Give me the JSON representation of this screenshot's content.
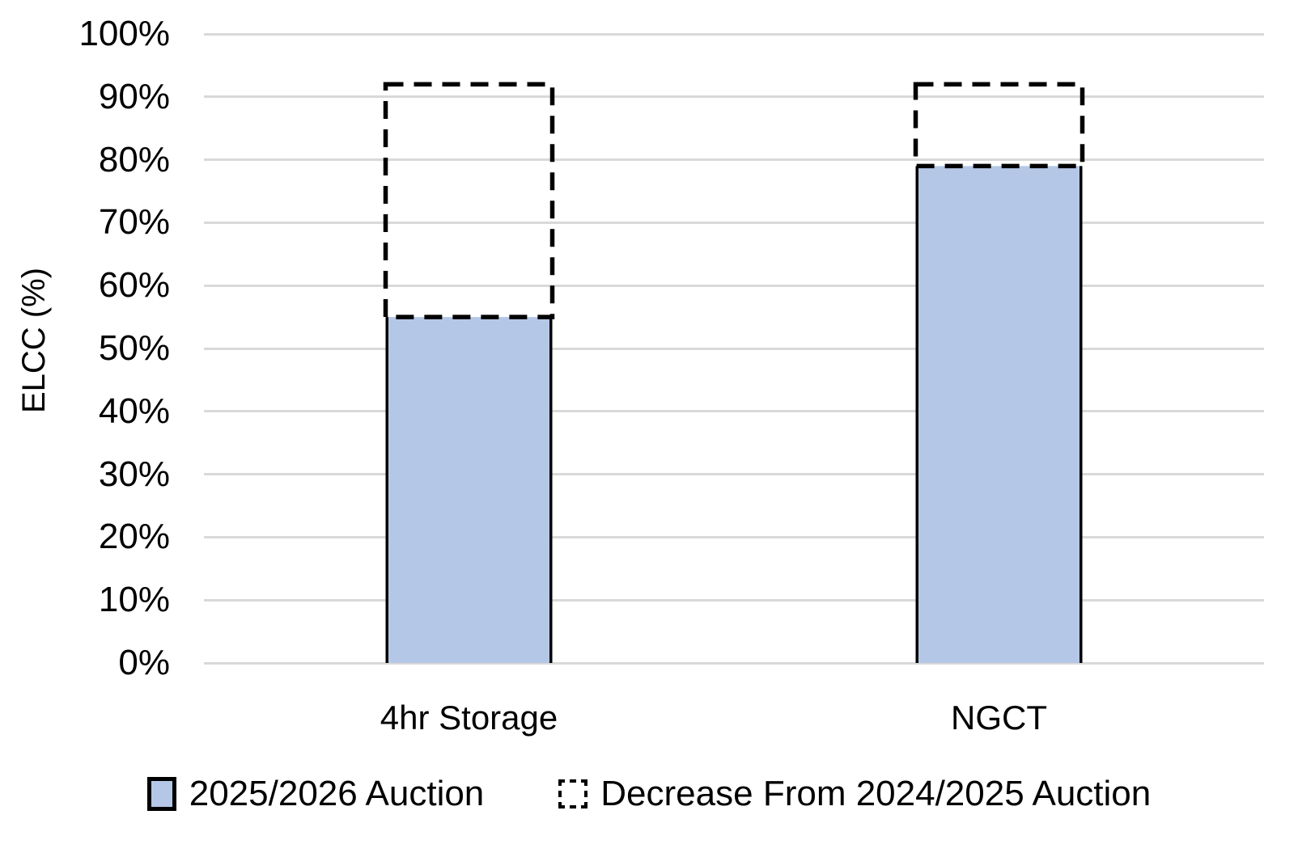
{
  "chart_data": {
    "type": "bar",
    "subtype": "stacked",
    "title": "",
    "ylabel": "ELCC (%)",
    "categories": [
      "4hr Storage",
      "NGCT"
    ],
    "series": [
      {
        "name": "2025/2026 Auction",
        "appearance": "solid-fill",
        "values_pct": [
          55,
          79
        ]
      },
      {
        "name": "Decrease From 2024/2025 Auction",
        "appearance": "dashed-outline",
        "values_pct": [
          37,
          13
        ]
      }
    ],
    "stack_top_pct": [
      92,
      92
    ],
    "y_ticks": [
      {
        "label": "0%",
        "value": 0
      },
      {
        "label": "10%",
        "value": 10
      },
      {
        "label": "20%",
        "value": 20
      },
      {
        "label": "30%",
        "value": 30
      },
      {
        "label": "40%",
        "value": 40
      },
      {
        "label": "50%",
        "value": 50
      },
      {
        "label": "60%",
        "value": 60
      },
      {
        "label": "70%",
        "value": 70
      },
      {
        "label": "80%",
        "value": 80
      },
      {
        "label": "90%",
        "value": 90
      },
      {
        "label": "100%",
        "value": 100
      }
    ],
    "ylim_pct": [
      0,
      100
    ],
    "grid": "horizontal-gridlines",
    "legend_position": "bottom"
  },
  "colors": {
    "bar_fill": "#B4C7E7",
    "bar_border": "#000000",
    "dashed_outline": "#000000",
    "gridline": "#D9D9D9",
    "text": "#000000",
    "background": "#FFFFFF"
  }
}
